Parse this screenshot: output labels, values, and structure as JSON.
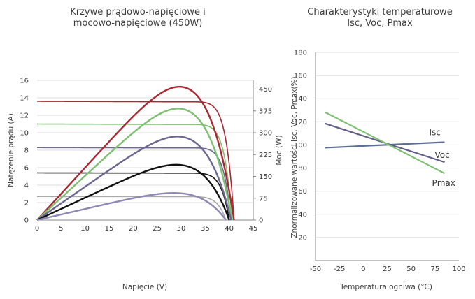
{
  "chart_data": [
    {
      "type": "line",
      "title_lines": [
        "Krzywe prądowo-napięciowe i",
        "mocowo-napięciowe (450W)"
      ],
      "xlabel": "Napięcie (V)",
      "ylabel": "Natężenie prądu (A)",
      "y2label": "Moc (W)",
      "xlim": [
        0,
        45
      ],
      "ylim": [
        0,
        16
      ],
      "y2lim": [
        0,
        480
      ],
      "xticks": [
        0,
        5,
        10,
        15,
        20,
        25,
        30,
        35,
        40,
        45
      ],
      "yticks": [
        0,
        2,
        4,
        6,
        8,
        10,
        12,
        14,
        16
      ],
      "y2ticks": [
        0,
        75,
        150,
        225,
        300,
        375,
        450
      ],
      "grid": "horizontal",
      "series": [
        {
          "kind": "iv",
          "color": "#aa2832",
          "isc": 13.6,
          "voc": 41.0,
          "knee": 28
        },
        {
          "kind": "iv",
          "color": "#7ec071",
          "isc": 11.0,
          "voc": 40.6,
          "knee": 28
        },
        {
          "kind": "iv",
          "color": "#6c6791",
          "isc": 8.3,
          "voc": 40.4,
          "knee": 28
        },
        {
          "kind": "iv",
          "color": "#111111",
          "isc": 5.4,
          "voc": 40.0,
          "knee": 27
        },
        {
          "kind": "iv",
          "color": "#a8a8a8",
          "isc": 2.7,
          "voc": 39.3,
          "knee": 26
        },
        {
          "kind": "pv",
          "color": "#aa2832",
          "vmp": 33.5,
          "pmax": 458,
          "voc": 41.0
        },
        {
          "kind": "pv",
          "color": "#7ec071",
          "vmp": 34.0,
          "pmax": 383,
          "voc": 40.6
        },
        {
          "kind": "pv",
          "color": "#6c6791",
          "vmp": 34.0,
          "pmax": 287,
          "voc": 40.4
        },
        {
          "kind": "pv",
          "color": "#111111",
          "vmp": 34.0,
          "pmax": 190,
          "voc": 40.0
        },
        {
          "kind": "pv",
          "color": "#8e88b4",
          "vmp": 33.5,
          "pmax": 93,
          "voc": 39.3
        }
      ]
    },
    {
      "type": "line",
      "title_lines": [
        "Charakterystyki temperaturowe",
        "Isc, Voc, Pmax"
      ],
      "xlabel": "Temperatura ogniwa (°C)",
      "ylabel": "Znormalizowane wartości Isc, Voc, Pmax(%)",
      "xlim": [
        -50,
        100
      ],
      "ylim": [
        0,
        180
      ],
      "xticks": [
        -50,
        -25,
        0,
        25,
        50,
        75,
        100
      ],
      "yticks": [
        20,
        40,
        60,
        80,
        100,
        120,
        140,
        160,
        180
      ],
      "grid": "horizontal",
      "series": [
        {
          "name": "Isc",
          "color": "#5e6f95",
          "x": [
            -40,
            85
          ],
          "y": [
            97.6,
            102.4
          ]
        },
        {
          "name": "Voc",
          "color": "#625e8a",
          "x": [
            -40,
            85
          ],
          "y": [
            118.5,
            85.1
          ]
        },
        {
          "name": "Pmax",
          "color": "#7ec071",
          "x": [
            -40,
            85
          ],
          "y": [
            128.3,
            75.4
          ]
        }
      ]
    }
  ]
}
